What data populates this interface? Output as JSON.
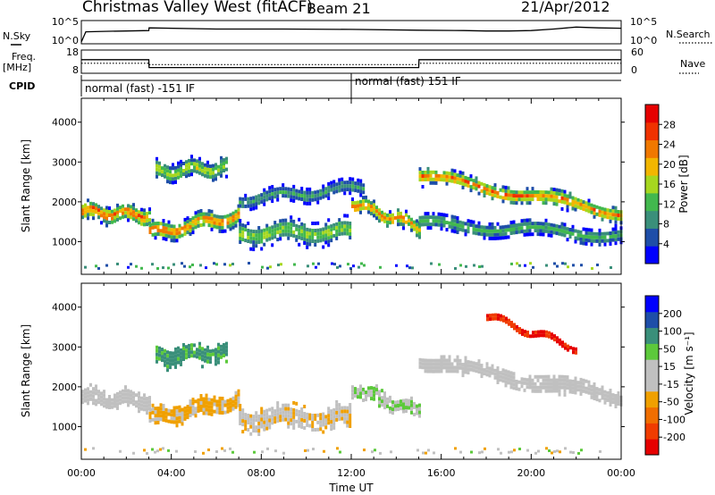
{
  "header": {
    "station": "Christmas Valley West (fitACF)",
    "beam": "Beam 21",
    "date": "21/Apr/2012"
  },
  "left_labels": {
    "nsky": "N.Sky",
    "freq_line1": "Freq.",
    "freq_line2": "[MHz]",
    "cpid": "CPID"
  },
  "right_labels": {
    "nsearch": "N.Search",
    "nave": "Nave"
  },
  "cpid_segments": [
    {
      "label": "normal (fast) -151 IF",
      "start_hour": 0,
      "end_hour": 12
    },
    {
      "label": "normal (fast) 151 IF",
      "start_hour": 12,
      "end_hour": 24
    }
  ],
  "colors": {
    "power_scale": [
      "#0000ff",
      "#1e4ea8",
      "#3a8f7a",
      "#42b84e",
      "#a6d71f",
      "#f2b600",
      "#f07800",
      "#f03200",
      "#e60000"
    ],
    "velocity_scale": [
      "#0000ff",
      "#1e4ea8",
      "#3a8f7a",
      "#5cc93b",
      "#c0c0c0",
      "#c0c0c0",
      "#f0a000",
      "#f06e00",
      "#f03c00",
      "#e60000"
    ],
    "ground_scatter": "#c0c0c0"
  },
  "chart_data": [
    {
      "type": "line",
      "name": "noise-panel",
      "left_axis_ticks": [
        "10^5",
        "10^0"
      ],
      "right_axis_ticks": [
        "10^5",
        "10^0"
      ],
      "series": [
        {
          "name": "N.Sky",
          "x_hours": [
            0,
            0.2,
            1,
            2,
            3,
            3.01,
            6,
            9,
            12,
            15,
            17,
            18,
            19,
            20,
            21,
            22,
            23,
            24
          ],
          "y_log10": [
            0,
            2.6,
            2.7,
            2.8,
            2.9,
            3.6,
            3.3,
            3.3,
            3.2,
            3.0,
            2.9,
            2.8,
            2.8,
            2.9,
            3.3,
            3.8,
            3.6,
            3.5
          ]
        }
      ]
    },
    {
      "type": "line",
      "name": "frequency-panel",
      "left_axis_ticks": [
        "18",
        "8"
      ],
      "right_axis_ticks": [
        "60",
        "0"
      ],
      "series": [
        {
          "name": "Freq.",
          "x_hours": [
            0,
            3,
            3.01,
            15,
            15.01,
            24
          ],
          "y_mhz": [
            14,
            14,
            10,
            10,
            14,
            14
          ]
        },
        {
          "name": "Nave",
          "x_hours": [
            0,
            3,
            3.01,
            15,
            15.01,
            24
          ],
          "y": [
            25,
            25,
            21,
            21,
            25,
            25
          ]
        }
      ]
    },
    {
      "type": "heatmap",
      "name": "power",
      "ylabel": "Slant Range [km]",
      "yticks": [
        1000,
        2000,
        3000,
        4000
      ],
      "ylim": [
        180,
        4600
      ],
      "colorbar_label": "Power [dB]",
      "colorbar_ticks": [
        4,
        8,
        12,
        16,
        20,
        24,
        28
      ],
      "colorbar_range": [
        0,
        32
      ],
      "scatter_bands": [
        {
          "hours": [
            0,
            3
          ],
          "center_km": [
            1800,
            1700
          ],
          "width_km": 320,
          "peak_db": 30
        },
        {
          "hours": [
            3,
            7
          ],
          "center_km": [
            1250,
            1700
          ],
          "width_km": 330,
          "peak_db": 28
        },
        {
          "hours": [
            3.3,
            6.5
          ],
          "center_km": [
            2800,
            2900
          ],
          "width_km": 350,
          "peak_db": 20
        },
        {
          "hours": [
            7,
            12
          ],
          "center_km": [
            1250,
            1300
          ],
          "width_km": 420,
          "peak_db": 18
        },
        {
          "hours": [
            7,
            12.5
          ],
          "center_km": [
            2100,
            2400
          ],
          "width_km": 280,
          "peak_db": 12
        },
        {
          "hours": [
            12,
            15
          ],
          "center_km": [
            2000,
            1400
          ],
          "width_km": 300,
          "peak_db": 26
        },
        {
          "hours": [
            15,
            24
          ],
          "center_km": [
            2700,
            1750
          ],
          "width_km": 300,
          "peak_db": 28
        },
        {
          "hours": [
            15,
            24
          ],
          "center_km": [
            1500,
            1200
          ],
          "width_km": 280,
          "peak_db": 14
        }
      ]
    },
    {
      "type": "heatmap",
      "name": "velocity",
      "xlabel": "Time UT",
      "ylabel": "Slant Range [km]",
      "yticks": [
        1000,
        2000,
        3000,
        4000
      ],
      "ylim": [
        180,
        4600
      ],
      "x_tick_labels": [
        "00:00",
        "04:00",
        "08:00",
        "12:00",
        "16:00",
        "20:00",
        "00:00"
      ],
      "xlim_hours": [
        0,
        24
      ],
      "colorbar_label": "Velocity [m s⁻¹]",
      "colorbar_ticks": [
        "200",
        "100",
        "50",
        "15",
        "-15",
        "-50",
        "-100",
        "-200"
      ],
      "colorbar_range": [
        -250,
        250
      ],
      "scatter_bands": [
        {
          "hours": [
            0,
            3
          ],
          "center_km": [
            1800,
            1700
          ],
          "width_km": 320,
          "velocity": 0
        },
        {
          "hours": [
            3,
            7
          ],
          "center_km": [
            1250,
            1700
          ],
          "width_km": 330,
          "velocity": -60
        },
        {
          "hours": [
            3.3,
            6.5
          ],
          "center_km": [
            2800,
            2900
          ],
          "width_km": 350,
          "velocity": 120
        },
        {
          "hours": [
            7,
            12
          ],
          "center_km": [
            1250,
            1300
          ],
          "width_km": 420,
          "velocity": -40
        },
        {
          "hours": [
            12,
            15
          ],
          "center_km": [
            2000,
            1400
          ],
          "width_km": 300,
          "velocity": 40
        },
        {
          "hours": [
            15,
            24
          ],
          "center_km": [
            2700,
            1750
          ],
          "width_km": 300,
          "velocity": 0
        },
        {
          "hours": [
            18,
            22
          ],
          "center_km": [
            3800,
            3000
          ],
          "width_km": 150,
          "velocity": -200
        }
      ]
    }
  ]
}
